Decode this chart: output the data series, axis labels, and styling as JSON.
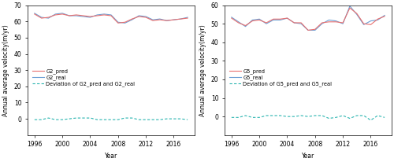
{
  "years": [
    1996,
    1997,
    1998,
    1999,
    2000,
    2001,
    2002,
    2003,
    2004,
    2005,
    2006,
    2007,
    2008,
    2009,
    2010,
    2011,
    2012,
    2013,
    2014,
    2015,
    2016,
    2017,
    2018
  ],
  "G2_pred": [
    64.5,
    62.0,
    62.5,
    64.0,
    64.5,
    63.5,
    64.0,
    63.5,
    63.0,
    63.5,
    64.0,
    63.5,
    59.0,
    59.5,
    61.5,
    63.0,
    62.5,
    60.5,
    61.0,
    60.5,
    61.0,
    61.5,
    62.0
  ],
  "G2_real": [
    65.0,
    62.5,
    62.0,
    64.5,
    65.0,
    63.5,
    63.5,
    63.0,
    62.5,
    64.0,
    64.5,
    64.0,
    59.5,
    59.0,
    61.0,
    63.5,
    63.0,
    61.0,
    61.5,
    60.5,
    61.0,
    61.5,
    62.5
  ],
  "G2_dev": [
    -0.5,
    -0.5,
    0.5,
    -0.5,
    -0.5,
    0.0,
    0.5,
    0.5,
    0.5,
    -0.5,
    -0.5,
    -0.5,
    -0.5,
    0.5,
    0.5,
    -0.5,
    -0.5,
    -0.5,
    -0.5,
    0.0,
    0.0,
    0.0,
    -0.5
  ],
  "G5_pred": [
    53.0,
    50.5,
    49.0,
    51.5,
    52.0,
    50.5,
    52.5,
    52.5,
    53.0,
    50.5,
    50.5,
    46.5,
    47.0,
    50.5,
    51.0,
    51.0,
    50.5,
    58.5,
    55.5,
    50.0,
    49.5,
    52.5,
    54.0
  ],
  "G5_real": [
    53.5,
    51.0,
    48.5,
    52.0,
    52.5,
    50.0,
    52.0,
    52.0,
    53.0,
    50.5,
    50.0,
    46.5,
    46.5,
    50.0,
    52.0,
    51.5,
    50.0,
    59.5,
    55.0,
    49.5,
    51.5,
    52.0,
    54.5
  ],
  "G5_dev": [
    -0.5,
    -0.5,
    0.5,
    -0.5,
    -0.5,
    0.5,
    0.5,
    0.5,
    0.0,
    0.0,
    0.5,
    0.0,
    0.5,
    0.5,
    -1.0,
    -0.5,
    0.5,
    -1.0,
    0.5,
    0.5,
    -2.0,
    0.5,
    -0.5
  ],
  "G2_ylim": [
    -10,
    70
  ],
  "G2_yticks": [
    0,
    10,
    20,
    30,
    40,
    50,
    60,
    70
  ],
  "G5_ylim": [
    -10,
    60
  ],
  "G5_yticks": [
    0,
    10,
    20,
    30,
    40,
    50,
    60
  ],
  "xlim": [
    1995,
    2019
  ],
  "xticks": [
    1996,
    2000,
    2004,
    2008,
    2012,
    2016
  ],
  "color_pred": "#e87070",
  "color_real": "#6b9fd4",
  "color_dev": "#2ab5b0",
  "ylabel": "Annual average velocity(m/yr)",
  "xlabel": "Year",
  "legend_G2": [
    "G2_pred",
    "G2_real",
    "Deviation of G2_pred and G2_real"
  ],
  "legend_G5": [
    "G5_pred",
    "G5_real",
    "Deviation of G5_pred and G5_real"
  ],
  "fontsize_label": 5.5,
  "fontsize_legend": 4.8,
  "fontsize_tick": 5.5
}
